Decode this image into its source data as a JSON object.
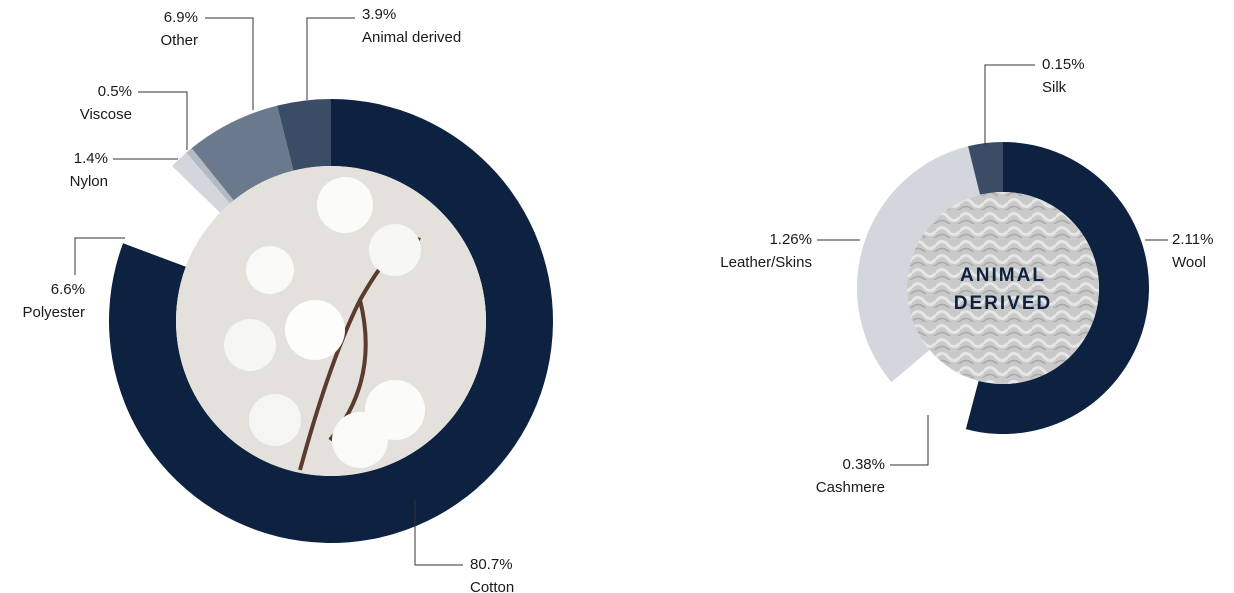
{
  "chart_data": [
    {
      "type": "donut",
      "categories": [
        "Cotton",
        "Polyester",
        "Nylon",
        "Viscose",
        "Other",
        "Animal derived"
      ],
      "values": [
        80.7,
        6.6,
        1.4,
        0.5,
        6.9,
        3.9
      ],
      "value_labels": [
        "80.7%",
        "6.6%",
        "1.4%",
        "0.5%",
        "6.9%",
        "3.9%"
      ],
      "colors": [
        "#0d2240",
        "#ffffff",
        "#d3d7dd",
        "#b3bac4",
        "#6b798c",
        "#3b4d66"
      ]
    },
    {
      "type": "donut",
      "center_label": [
        "ANIMAL",
        "DERIVED"
      ],
      "categories": [
        "Wool",
        "Cashmere",
        "Leather/Skins",
        "Silk"
      ],
      "values": [
        2.11,
        0.38,
        1.26,
        0.15
      ],
      "value_labels": [
        "2.11%",
        "0.38%",
        "1.26%",
        "0.15%"
      ],
      "colors": [
        "#0d2240",
        "#ffffff",
        "#d3d7dd",
        "#3b4d66"
      ]
    }
  ]
}
